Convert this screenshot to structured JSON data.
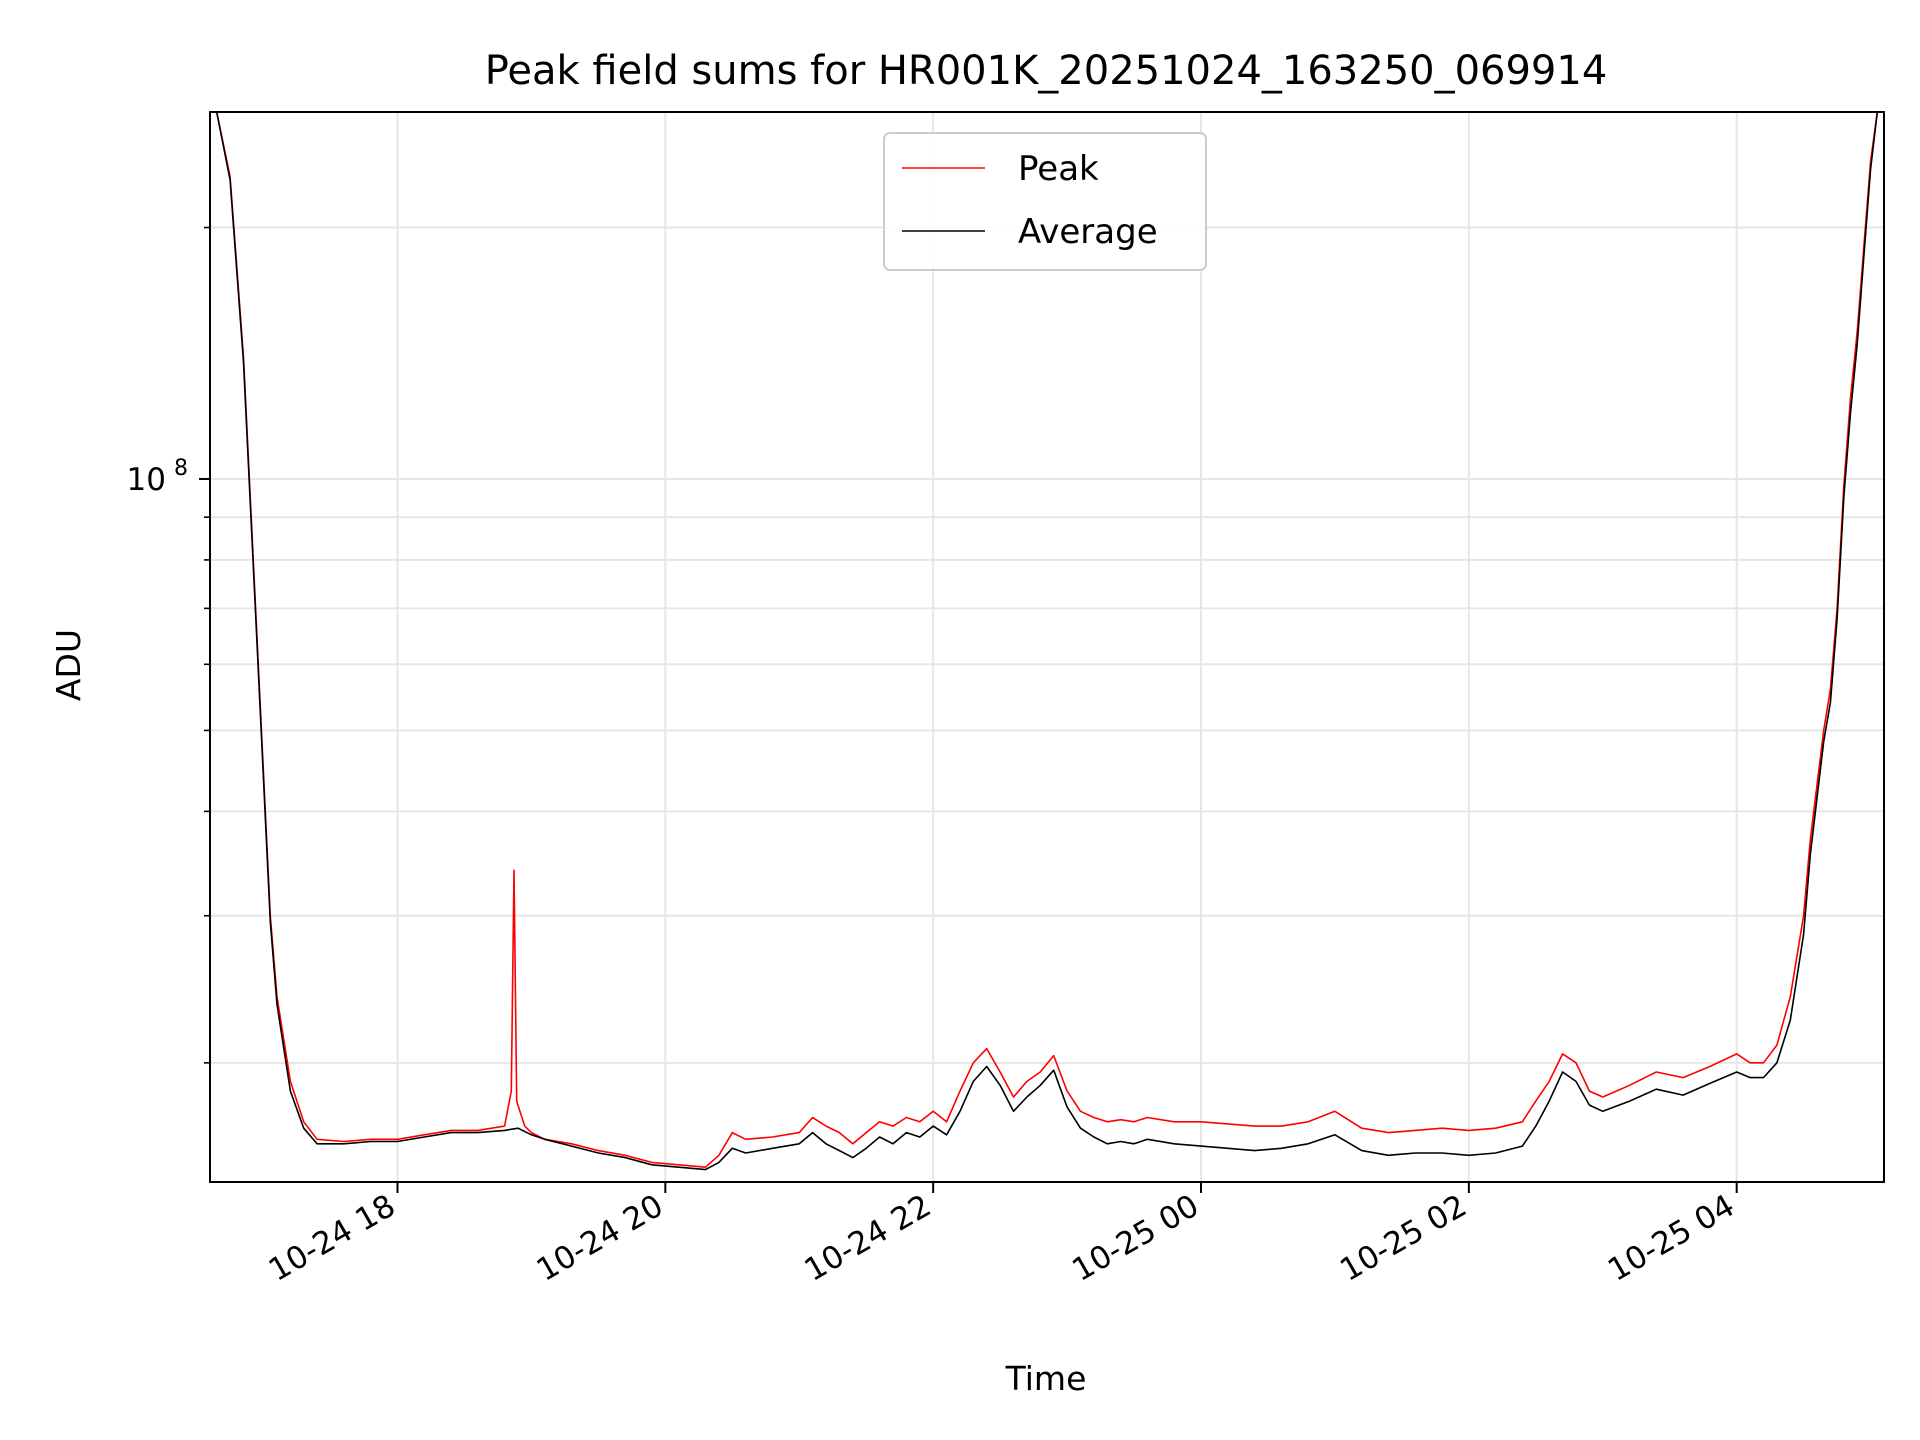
{
  "chart_data": {
    "type": "line",
    "title": "Peak field sums for HR001K_20251024_163250_069914",
    "xlabel": "Time",
    "ylabel": "ADU",
    "yscale": "log",
    "ylim": [
      14400000,
      275000000
    ],
    "xlim_hours": [
      16.6,
      29.1
    ],
    "grid": true,
    "legend_position": "upper-center",
    "xticks": [
      {
        "hour": 18,
        "label": "10-24 18"
      },
      {
        "hour": 20,
        "label": "10-24 20"
      },
      {
        "hour": 22,
        "label": "10-24 22"
      },
      {
        "hour": 24,
        "label": "10-25 00"
      },
      {
        "hour": 26,
        "label": "10-25 02"
      },
      {
        "hour": 28,
        "label": "10-25 04"
      }
    ],
    "yticks": [
      {
        "value": 100000000,
        "base": "10",
        "exp": "8"
      }
    ],
    "y_minor_ticks": [
      20000000,
      30000000,
      40000000,
      50000000,
      60000000,
      70000000,
      80000000,
      90000000,
      200000000
    ],
    "series": [
      {
        "name": "Peak",
        "color": "#ff0000",
        "x": [
          16.65,
          16.75,
          16.85,
          16.95,
          17.05,
          17.1,
          17.2,
          17.3,
          17.4,
          17.6,
          17.8,
          18.0,
          18.2,
          18.4,
          18.6,
          18.8,
          18.85,
          18.87,
          18.89,
          18.95,
          19.0,
          19.1,
          19.3,
          19.5,
          19.7,
          19.9,
          20.1,
          20.3,
          20.4,
          20.5,
          20.6,
          20.8,
          21.0,
          21.1,
          21.2,
          21.3,
          21.4,
          21.5,
          21.6,
          21.7,
          21.8,
          21.9,
          22.0,
          22.1,
          22.2,
          22.3,
          22.4,
          22.5,
          22.6,
          22.7,
          22.8,
          22.9,
          23.0,
          23.1,
          23.2,
          23.3,
          23.4,
          23.5,
          23.6,
          23.8,
          24.0,
          24.2,
          24.4,
          24.6,
          24.8,
          25.0,
          25.2,
          25.4,
          25.6,
          25.8,
          26.0,
          26.2,
          26.4,
          26.5,
          26.6,
          26.7,
          26.8,
          26.9,
          27.0,
          27.2,
          27.4,
          27.6,
          27.8,
          28.0,
          28.1,
          28.2,
          28.3,
          28.4,
          28.5,
          28.55,
          28.6,
          28.65,
          28.7,
          28.75,
          28.8,
          28.85,
          28.9,
          28.95,
          29.0,
          29.05
        ],
        "values": [
          275000000,
          230000000,
          140000000,
          65000000,
          30000000,
          24000000,
          19000000,
          17000000,
          16200000,
          16100000,
          16200000,
          16200000,
          16400000,
          16600000,
          16600000,
          16800000,
          18500000,
          34000000,
          18000000,
          16800000,
          16500000,
          16200000,
          16000000,
          15700000,
          15500000,
          15200000,
          15100000,
          15000000,
          15500000,
          16500000,
          16200000,
          16300000,
          16500000,
          17200000,
          16800000,
          16500000,
          16000000,
          16500000,
          17000000,
          16800000,
          17200000,
          17000000,
          17500000,
          17000000,
          18500000,
          20000000,
          20800000,
          19500000,
          18200000,
          19000000,
          19500000,
          20400000,
          18500000,
          17500000,
          17200000,
          17000000,
          17100000,
          17000000,
          17200000,
          17000000,
          17000000,
          16900000,
          16800000,
          16800000,
          17000000,
          17500000,
          16700000,
          16500000,
          16600000,
          16700000,
          16600000,
          16700000,
          17000000,
          18000000,
          19000000,
          20500000,
          20000000,
          18500000,
          18200000,
          18800000,
          19500000,
          19200000,
          19800000,
          20500000,
          20000000,
          20000000,
          21000000,
          24000000,
          30000000,
          37000000,
          43000000,
          50000000,
          56000000,
          70000000,
          98000000,
          125000000,
          150000000,
          190000000,
          240000000,
          275000000
        ]
      },
      {
        "name": "Average",
        "color": "#000000",
        "x": [
          16.65,
          16.75,
          16.85,
          16.95,
          17.05,
          17.1,
          17.2,
          17.3,
          17.4,
          17.6,
          17.8,
          18.0,
          18.2,
          18.4,
          18.6,
          18.8,
          18.9,
          19.0,
          19.1,
          19.3,
          19.5,
          19.7,
          19.9,
          20.1,
          20.3,
          20.4,
          20.5,
          20.6,
          20.8,
          21.0,
          21.1,
          21.2,
          21.3,
          21.4,
          21.5,
          21.6,
          21.7,
          21.8,
          21.9,
          22.0,
          22.1,
          22.2,
          22.3,
          22.4,
          22.5,
          22.6,
          22.7,
          22.8,
          22.9,
          23.0,
          23.1,
          23.2,
          23.3,
          23.4,
          23.5,
          23.6,
          23.8,
          24.0,
          24.2,
          24.4,
          24.6,
          24.8,
          25.0,
          25.2,
          25.4,
          25.6,
          25.8,
          26.0,
          26.2,
          26.4,
          26.5,
          26.6,
          26.7,
          26.8,
          26.9,
          27.0,
          27.2,
          27.4,
          27.6,
          27.8,
          28.0,
          28.1,
          28.2,
          28.3,
          28.4,
          28.5,
          28.55,
          28.6,
          28.65,
          28.7,
          28.75,
          28.8,
          28.85,
          28.9,
          28.95,
          29.0,
          29.05
        ],
        "values": [
          275000000,
          228000000,
          138000000,
          64000000,
          29500000,
          23500000,
          18500000,
          16700000,
          16000000,
          16000000,
          16100000,
          16100000,
          16300000,
          16500000,
          16500000,
          16600000,
          16700000,
          16400000,
          16200000,
          15900000,
          15600000,
          15400000,
          15100000,
          15000000,
          14900000,
          15200000,
          15800000,
          15600000,
          15800000,
          16000000,
          16500000,
          16000000,
          15700000,
          15400000,
          15800000,
          16300000,
          16000000,
          16500000,
          16300000,
          16800000,
          16400000,
          17500000,
          19000000,
          19800000,
          18800000,
          17500000,
          18200000,
          18800000,
          19600000,
          17700000,
          16700000,
          16300000,
          16000000,
          16100000,
          16000000,
          16200000,
          16000000,
          15900000,
          15800000,
          15700000,
          15800000,
          16000000,
          16400000,
          15700000,
          15500000,
          15600000,
          15600000,
          15500000,
          15600000,
          15900000,
          16800000,
          18000000,
          19500000,
          19000000,
          17800000,
          17500000,
          18000000,
          18600000,
          18300000,
          18900000,
          19500000,
          19200000,
          19200000,
          20000000,
          22500000,
          28500000,
          35500000,
          41500000,
          48500000,
          54000000,
          68000000,
          95000000,
          120000000,
          145000000,
          185000000,
          235000000,
          275000000
        ]
      }
    ]
  }
}
